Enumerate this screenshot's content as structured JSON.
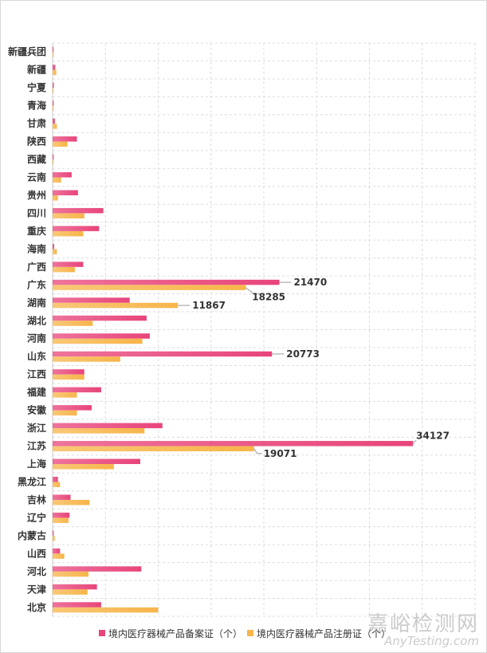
{
  "chart_data": {
    "type": "bar",
    "orientation": "horizontal",
    "categories": [
      "新疆兵团",
      "新疆",
      "宁夏",
      "青海",
      "甘肃",
      "陕西",
      "西藏",
      "云南",
      "贵州",
      "四川",
      "重庆",
      "海南",
      "广西",
      "广东",
      "湖南",
      "湖北",
      "河南",
      "山东",
      "江西",
      "福建",
      "安徽",
      "浙江",
      "江苏",
      "上海",
      "黑龙江",
      "吉林",
      "辽宁",
      "内蒙古",
      "山西",
      "河北",
      "天津",
      "北京"
    ],
    "series": [
      {
        "name": "境内医疗器械产品备案证（个）",
        "color": "#e8457a",
        "values": [
          50,
          250,
          120,
          100,
          220,
          2300,
          100,
          1800,
          2400,
          4800,
          4400,
          150,
          2900,
          21470,
          7300,
          8900,
          9200,
          20773,
          3000,
          4600,
          3700,
          10400,
          34127,
          8300,
          500,
          1700,
          1600,
          100,
          700,
          8400,
          4200,
          4600
        ],
        "labeled": {
          "广东": "21470",
          "山东": "20773",
          "江苏": "34127"
        }
      },
      {
        "name": "境内医疗器械产品注册证（个）",
        "color": "#f7b54a",
        "values": [
          50,
          350,
          80,
          80,
          400,
          1400,
          30,
          800,
          500,
          3000,
          2900,
          400,
          2100,
          18285,
          11867,
          3800,
          8500,
          6400,
          3000,
          2300,
          2300,
          8700,
          19071,
          5800,
          700,
          3500,
          1500,
          200,
          1100,
          3400,
          3300,
          10000
        ],
        "labeled": {
          "湖南": "11867",
          "广东": "18285",
          "江苏": "19071"
        }
      }
    ],
    "xlim": [
      0,
      40000
    ],
    "grid": true,
    "legend_position": "bottom-center"
  },
  "watermark": {
    "cn": "嘉峪检测网",
    "en": "AnyTesting.com"
  }
}
